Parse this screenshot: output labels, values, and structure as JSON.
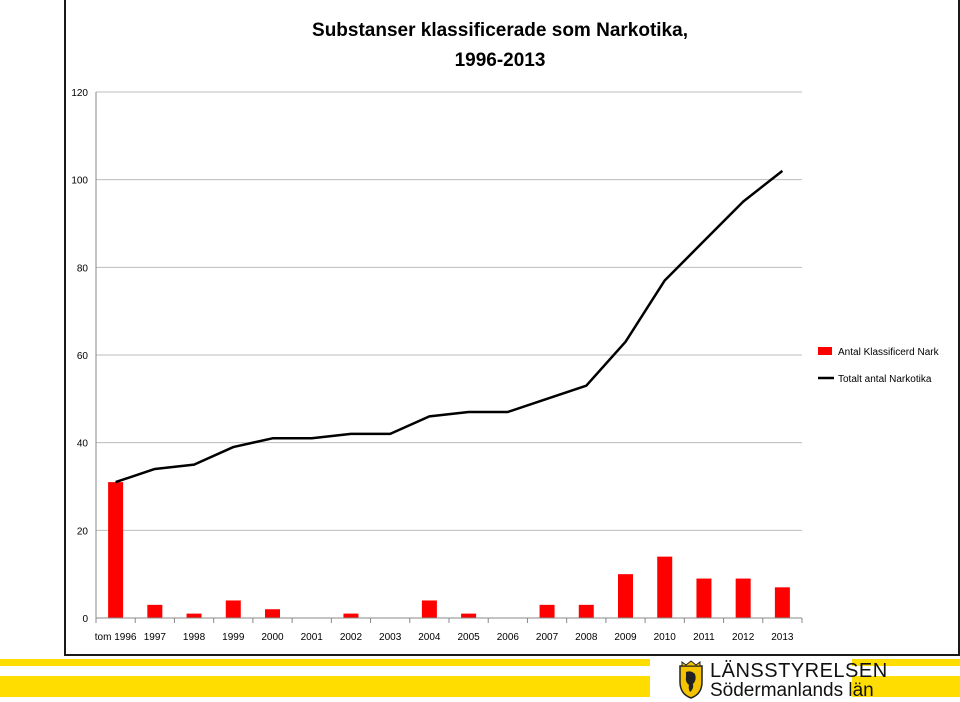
{
  "chart_data": {
    "type": "bar+line",
    "title_line1": "Substanser klassificerade som Narkotika,",
    "title_line2": "1996-2013",
    "categories": [
      "tom 1996",
      "1997",
      "1998",
      "1999",
      "2000",
      "2001",
      "2002",
      "2003",
      "2004",
      "2005",
      "2006",
      "2007",
      "2008",
      "2009",
      "2010",
      "2011",
      "2012",
      "2013"
    ],
    "series": [
      {
        "name": "Antal Klassificerd Nark",
        "type": "bar",
        "color": "#ff0000",
        "values": [
          31,
          3,
          1,
          4,
          2,
          0,
          1,
          0,
          4,
          1,
          0,
          3,
          3,
          10,
          14,
          9,
          9,
          7
        ]
      },
      {
        "name": "Totalt antal Narkotika",
        "type": "line",
        "color": "#000000",
        "values": [
          31,
          34,
          35,
          39,
          41,
          41,
          42,
          42,
          46,
          47,
          47,
          50,
          53,
          63,
          77,
          86,
          95,
          102
        ]
      }
    ],
    "ylim": [
      0,
      120
    ],
    "yticks": [
      0,
      20,
      40,
      60,
      80,
      100,
      120
    ],
    "grid": true,
    "legend_position": "right"
  },
  "footer": {
    "logo_line1": "LÄNSSTYRELSEN",
    "logo_line2": "Södermanlands län",
    "band_color": "#ffdd00"
  }
}
